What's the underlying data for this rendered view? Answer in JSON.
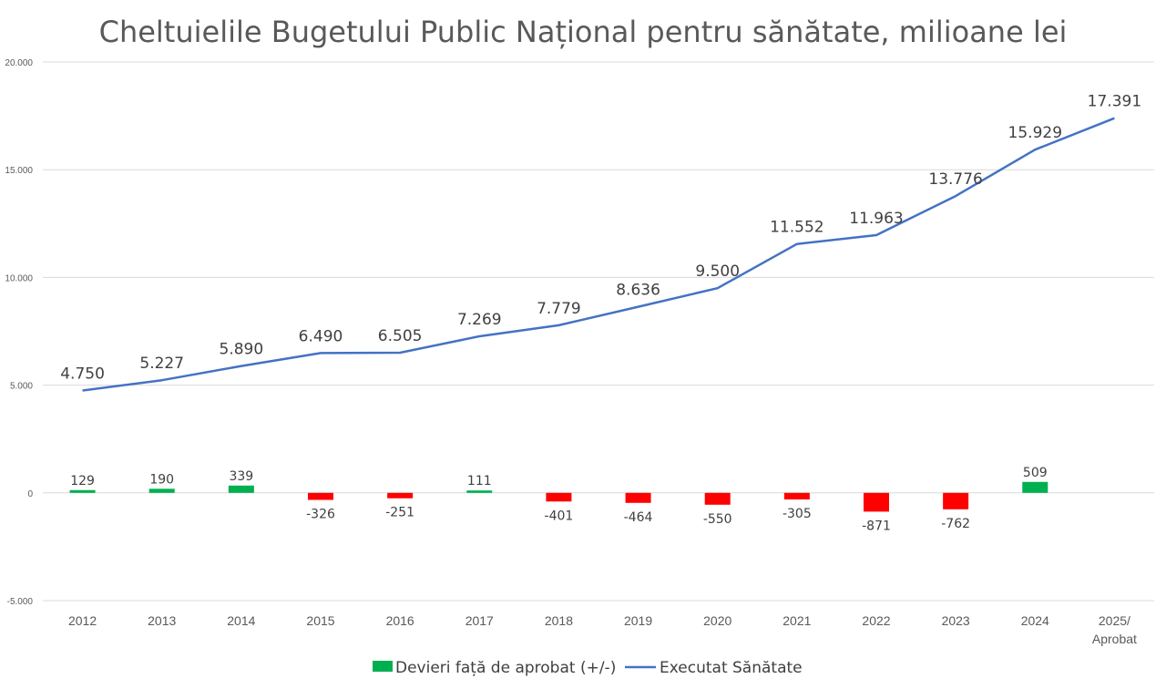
{
  "chart_data": {
    "type": "bar+line",
    "title": "Cheltuielile Bugetului Public Național pentru sănătate, milioane lei",
    "categories": [
      [
        "2012"
      ],
      [
        "2013"
      ],
      [
        "2014"
      ],
      [
        "2015"
      ],
      [
        "2016"
      ],
      [
        "2017"
      ],
      [
        "2018"
      ],
      [
        "2019"
      ],
      [
        "2020"
      ],
      [
        "2021"
      ],
      [
        "2022"
      ],
      [
        "2023"
      ],
      [
        "2024"
      ],
      [
        "2025/",
        "Aprobat"
      ]
    ],
    "ylim": [
      -5000,
      20000
    ],
    "yticks": [
      -5000,
      0,
      5000,
      10000,
      15000,
      20000
    ],
    "ytick_labels": [
      "-5.000",
      "0",
      "5.000",
      "10.000",
      "15.000",
      "20.000"
    ],
    "grid": true,
    "legend_position": "bottom",
    "series": [
      {
        "name": "Devieri față de aprobat (+/-)",
        "type": "bar",
        "values": [
          129,
          190,
          339,
          -326,
          -251,
          111,
          -401,
          -464,
          -550,
          -305,
          -871,
          -762,
          509,
          null
        ],
        "labels": [
          "129",
          "190",
          "339",
          "-326",
          "-251",
          "111",
          "-401",
          "-464",
          "-550",
          "-305",
          "-871",
          "-762",
          "509",
          ""
        ],
        "positive_color": "#00b050",
        "negative_color": "#ff0000"
      },
      {
        "name": "Executat Sănătate",
        "type": "line",
        "values": [
          4750,
          5227,
          5890,
          6490,
          6505,
          7269,
          7779,
          8636,
          9500,
          11552,
          11963,
          13776,
          15929,
          17391
        ],
        "labels": [
          "4.750",
          "5.227",
          "5.890",
          "6.490",
          "6.505",
          "7.269",
          "7.779",
          "8.636",
          "9.500",
          "11.552",
          "11.963",
          "13.776",
          "15.929",
          "17.391"
        ],
        "color": "#4472c4"
      }
    ]
  }
}
